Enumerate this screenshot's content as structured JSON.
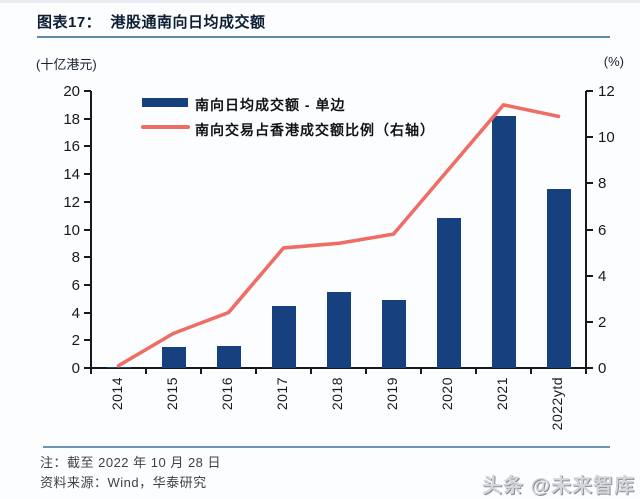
{
  "header": {
    "title": "图表17：  港股通南向日均成交额"
  },
  "chart_data": {
    "type": "bar",
    "subtype": "bar+line dual-axis",
    "categories": [
      "2014",
      "2015",
      "2016",
      "2017",
      "2018",
      "2019",
      "2020",
      "2021",
      "2022ytd"
    ],
    "series": [
      {
        "name": "南向日均成交额 - 单边",
        "type": "bar",
        "axis": "left",
        "color": "#17417e",
        "values": [
          0.1,
          1.5,
          1.6,
          4.5,
          5.5,
          4.9,
          10.8,
          18.2,
          12.9
        ]
      },
      {
        "name": "南向交易占香港成交额比例（右轴）",
        "type": "line",
        "axis": "right",
        "color": "#ee6e66",
        "values": [
          0.1,
          1.5,
          2.4,
          5.2,
          5.4,
          5.8,
          8.6,
          11.4,
          10.9
        ]
      }
    ],
    "left_axis": {
      "unit": "(十亿港元)",
      "min": 0,
      "max": 20,
      "step": 2
    },
    "right_axis": {
      "unit": "(%)",
      "min": 0,
      "max": 12,
      "step": 2
    },
    "grid": false,
    "legend_position": "top-left-inside"
  },
  "footer": {
    "note": "注：截至 2022 年 10 月 28 日",
    "source": "资料来源：Wind，华泰研究",
    "watermark": "头条 @未来智库"
  }
}
